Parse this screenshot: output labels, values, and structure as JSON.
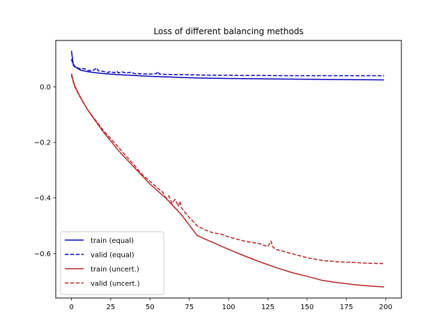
{
  "chart_data": {
    "type": "line",
    "title": "Loss of different balancing methods",
    "xlabel": "",
    "ylabel": "",
    "xlim": [
      -10,
      210
    ],
    "ylim": [
      -0.76,
      0.167
    ],
    "xticks": [
      0,
      25,
      50,
      75,
      100,
      125,
      150,
      175,
      200
    ],
    "yticks": [
      0.0,
      -0.2,
      -0.4,
      -0.6
    ],
    "ytick_labels": [
      "0.0",
      "−0.2",
      "−0.4",
      "−0.6"
    ],
    "grid": false,
    "legend_position": "lower-left",
    "series": [
      {
        "name": "train (equal)",
        "color": "#0000bb",
        "style": "solid",
        "points": [
          [
            0,
            0.13
          ],
          [
            1,
            0.085
          ],
          [
            2,
            0.074
          ],
          [
            4,
            0.066
          ],
          [
            6,
            0.06
          ],
          [
            10,
            0.055
          ],
          [
            15,
            0.051
          ],
          [
            20,
            0.048
          ],
          [
            30,
            0.044
          ],
          [
            40,
            0.041
          ],
          [
            50,
            0.038
          ],
          [
            60,
            0.036
          ],
          [
            70,
            0.034
          ],
          [
            80,
            0.032
          ],
          [
            90,
            0.031
          ],
          [
            100,
            0.03
          ],
          [
            120,
            0.029
          ],
          [
            140,
            0.028
          ],
          [
            160,
            0.027
          ],
          [
            180,
            0.026
          ],
          [
            199,
            0.025
          ]
        ]
      },
      {
        "name": "valid (equal)",
        "color": "#0000bb",
        "style": "dashed",
        "points": [
          [
            0,
            0.1
          ],
          [
            1,
            0.08
          ],
          [
            2,
            0.072
          ],
          [
            4,
            0.068
          ],
          [
            6,
            0.064
          ],
          [
            8,
            0.066
          ],
          [
            10,
            0.06
          ],
          [
            12,
            0.058
          ],
          [
            14,
            0.06
          ],
          [
            16,
            0.068
          ],
          [
            17,
            0.058
          ],
          [
            20,
            0.056
          ],
          [
            23,
            0.052
          ],
          [
            25,
            0.055
          ],
          [
            27,
            0.051
          ],
          [
            29,
            0.056
          ],
          [
            30,
            0.05
          ],
          [
            32,
            0.054
          ],
          [
            35,
            0.05
          ],
          [
            38,
            0.053
          ],
          [
            40,
            0.048
          ],
          [
            45,
            0.047
          ],
          [
            50,
            0.046
          ],
          [
            54,
            0.048
          ],
          [
            55,
            0.055
          ],
          [
            56,
            0.046
          ],
          [
            60,
            0.045
          ],
          [
            70,
            0.044
          ],
          [
            80,
            0.043
          ],
          [
            90,
            0.042
          ],
          [
            100,
            0.042
          ],
          [
            110,
            0.041
          ],
          [
            120,
            0.041
          ],
          [
            140,
            0.04
          ],
          [
            160,
            0.04
          ],
          [
            180,
            0.04
          ],
          [
            199,
            0.04
          ]
        ]
      },
      {
        "name": "train (uncert.)",
        "color": "#b22222",
        "style": "solid",
        "points": [
          [
            0,
            0.048
          ],
          [
            1,
            0.025
          ],
          [
            2,
            0.005
          ],
          [
            5,
            -0.03
          ],
          [
            10,
            -0.08
          ],
          [
            20,
            -0.16
          ],
          [
            30,
            -0.23
          ],
          [
            40,
            -0.29
          ],
          [
            50,
            -0.35
          ],
          [
            60,
            -0.4
          ],
          [
            70,
            -0.46
          ],
          [
            80,
            -0.535
          ],
          [
            90,
            -0.56
          ],
          [
            100,
            -0.585
          ],
          [
            110,
            -0.608
          ],
          [
            120,
            -0.63
          ],
          [
            130,
            -0.65
          ],
          [
            140,
            -0.668
          ],
          [
            150,
            -0.682
          ],
          [
            160,
            -0.697
          ],
          [
            170,
            -0.705
          ],
          [
            180,
            -0.712
          ],
          [
            190,
            -0.717
          ],
          [
            199,
            -0.72
          ]
        ]
      },
      {
        "name": "valid (uncert.)",
        "color": "#b22222",
        "style": "dashed",
        "points": [
          [
            0,
            0.042
          ],
          [
            1,
            0.02
          ],
          [
            2,
            0.002
          ],
          [
            5,
            -0.032
          ],
          [
            10,
            -0.08
          ],
          [
            20,
            -0.155
          ],
          [
            30,
            -0.218
          ],
          [
            40,
            -0.282
          ],
          [
            45,
            -0.315
          ],
          [
            50,
            -0.34
          ],
          [
            55,
            -0.365
          ],
          [
            58,
            -0.378
          ],
          [
            60,
            -0.4
          ],
          [
            62,
            -0.392
          ],
          [
            64,
            -0.42
          ],
          [
            66,
            -0.405
          ],
          [
            68,
            -0.43
          ],
          [
            69,
            -0.412
          ],
          [
            70,
            -0.435
          ],
          [
            72,
            -0.45
          ],
          [
            75,
            -0.47
          ],
          [
            80,
            -0.5
          ],
          [
            85,
            -0.515
          ],
          [
            90,
            -0.525
          ],
          [
            95,
            -0.53
          ],
          [
            100,
            -0.54
          ],
          [
            110,
            -0.555
          ],
          [
            120,
            -0.565
          ],
          [
            125,
            -0.575
          ],
          [
            127,
            -0.555
          ],
          [
            128,
            -0.575
          ],
          [
            130,
            -0.585
          ],
          [
            140,
            -0.6
          ],
          [
            150,
            -0.615
          ],
          [
            160,
            -0.625
          ],
          [
            170,
            -0.63
          ],
          [
            180,
            -0.632
          ],
          [
            190,
            -0.635
          ],
          [
            199,
            -0.636
          ]
        ]
      }
    ]
  }
}
